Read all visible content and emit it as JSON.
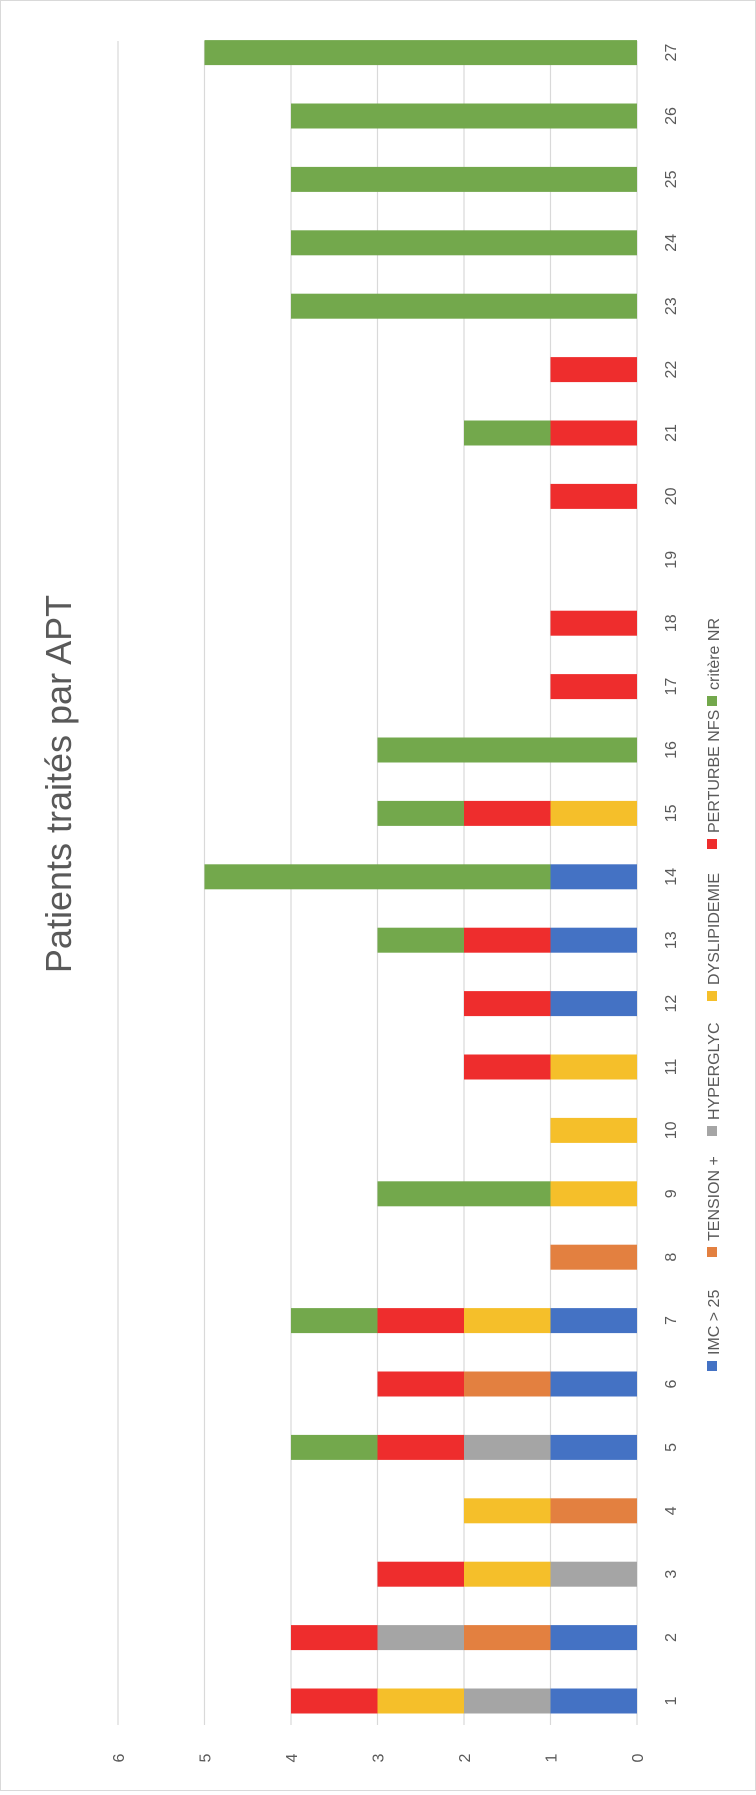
{
  "chart_data": {
    "type": "bar",
    "stacked": true,
    "orientation": "vertical-bars, rendered rotated 90 degrees counter-clockwise",
    "title": "Patients traités par APT",
    "categories": [
      "1",
      "2",
      "3",
      "4",
      "5",
      "6",
      "7",
      "8",
      "9",
      "10",
      "11",
      "12",
      "13",
      "14",
      "15",
      "16",
      "17",
      "18",
      "19",
      "20",
      "21",
      "22",
      "23",
      "24",
      "25",
      "26",
      "27"
    ],
    "ylim": [
      0,
      6
    ],
    "yticks": [
      "0",
      "1",
      "2",
      "3",
      "4",
      "5",
      "6"
    ],
    "grid": true,
    "legend_position": "bottom",
    "series": [
      {
        "name": "IMC > 25",
        "color": "#4472c4",
        "values": [
          1,
          1,
          0,
          0,
          1,
          1,
          1,
          0,
          0,
          0,
          0,
          1,
          1,
          1,
          0,
          0,
          0,
          0,
          0,
          0,
          0,
          0,
          0,
          0,
          0,
          0,
          0
        ]
      },
      {
        "name": "TENSION +",
        "color": "#e38040",
        "values": [
          0,
          1,
          0,
          1,
          0,
          1,
          0,
          1,
          0,
          0,
          0,
          0,
          0,
          0,
          0,
          0,
          0,
          0,
          0,
          0,
          0,
          0,
          0,
          0,
          0,
          0,
          0
        ]
      },
      {
        "name": "HYPERGLYC",
        "color": "#a5a5a5",
        "values": [
          1,
          1,
          1,
          0,
          1,
          0,
          0,
          0,
          0,
          0,
          0,
          0,
          0,
          0,
          0,
          0,
          0,
          0,
          0,
          0,
          0,
          0,
          0,
          0,
          0,
          0,
          0
        ]
      },
      {
        "name": "DYSLIPIDEMIE",
        "color": "#f5bf2a",
        "values": [
          1,
          0,
          1,
          1,
          0,
          0,
          1,
          0,
          1,
          1,
          1,
          0,
          0,
          0,
          1,
          0,
          0,
          0,
          0,
          0,
          0,
          0,
          0,
          0,
          0,
          0,
          0
        ]
      },
      {
        "name": "PERTURBE NFS",
        "color": "#ee2d2d",
        "values": [
          1,
          1,
          1,
          0,
          1,
          1,
          1,
          0,
          0,
          0,
          1,
          1,
          1,
          0,
          1,
          0,
          1,
          1,
          0,
          1,
          1,
          1,
          0,
          0,
          0,
          0,
          0
        ]
      },
      {
        "name": "critère NR",
        "color": "#73a84c",
        "values": [
          0,
          0,
          0,
          0,
          1,
          0,
          1,
          0,
          2,
          0,
          0,
          0,
          1,
          4,
          1,
          3,
          0,
          0,
          0,
          0,
          1,
          0,
          4,
          4,
          4,
          4,
          5
        ]
      }
    ]
  }
}
